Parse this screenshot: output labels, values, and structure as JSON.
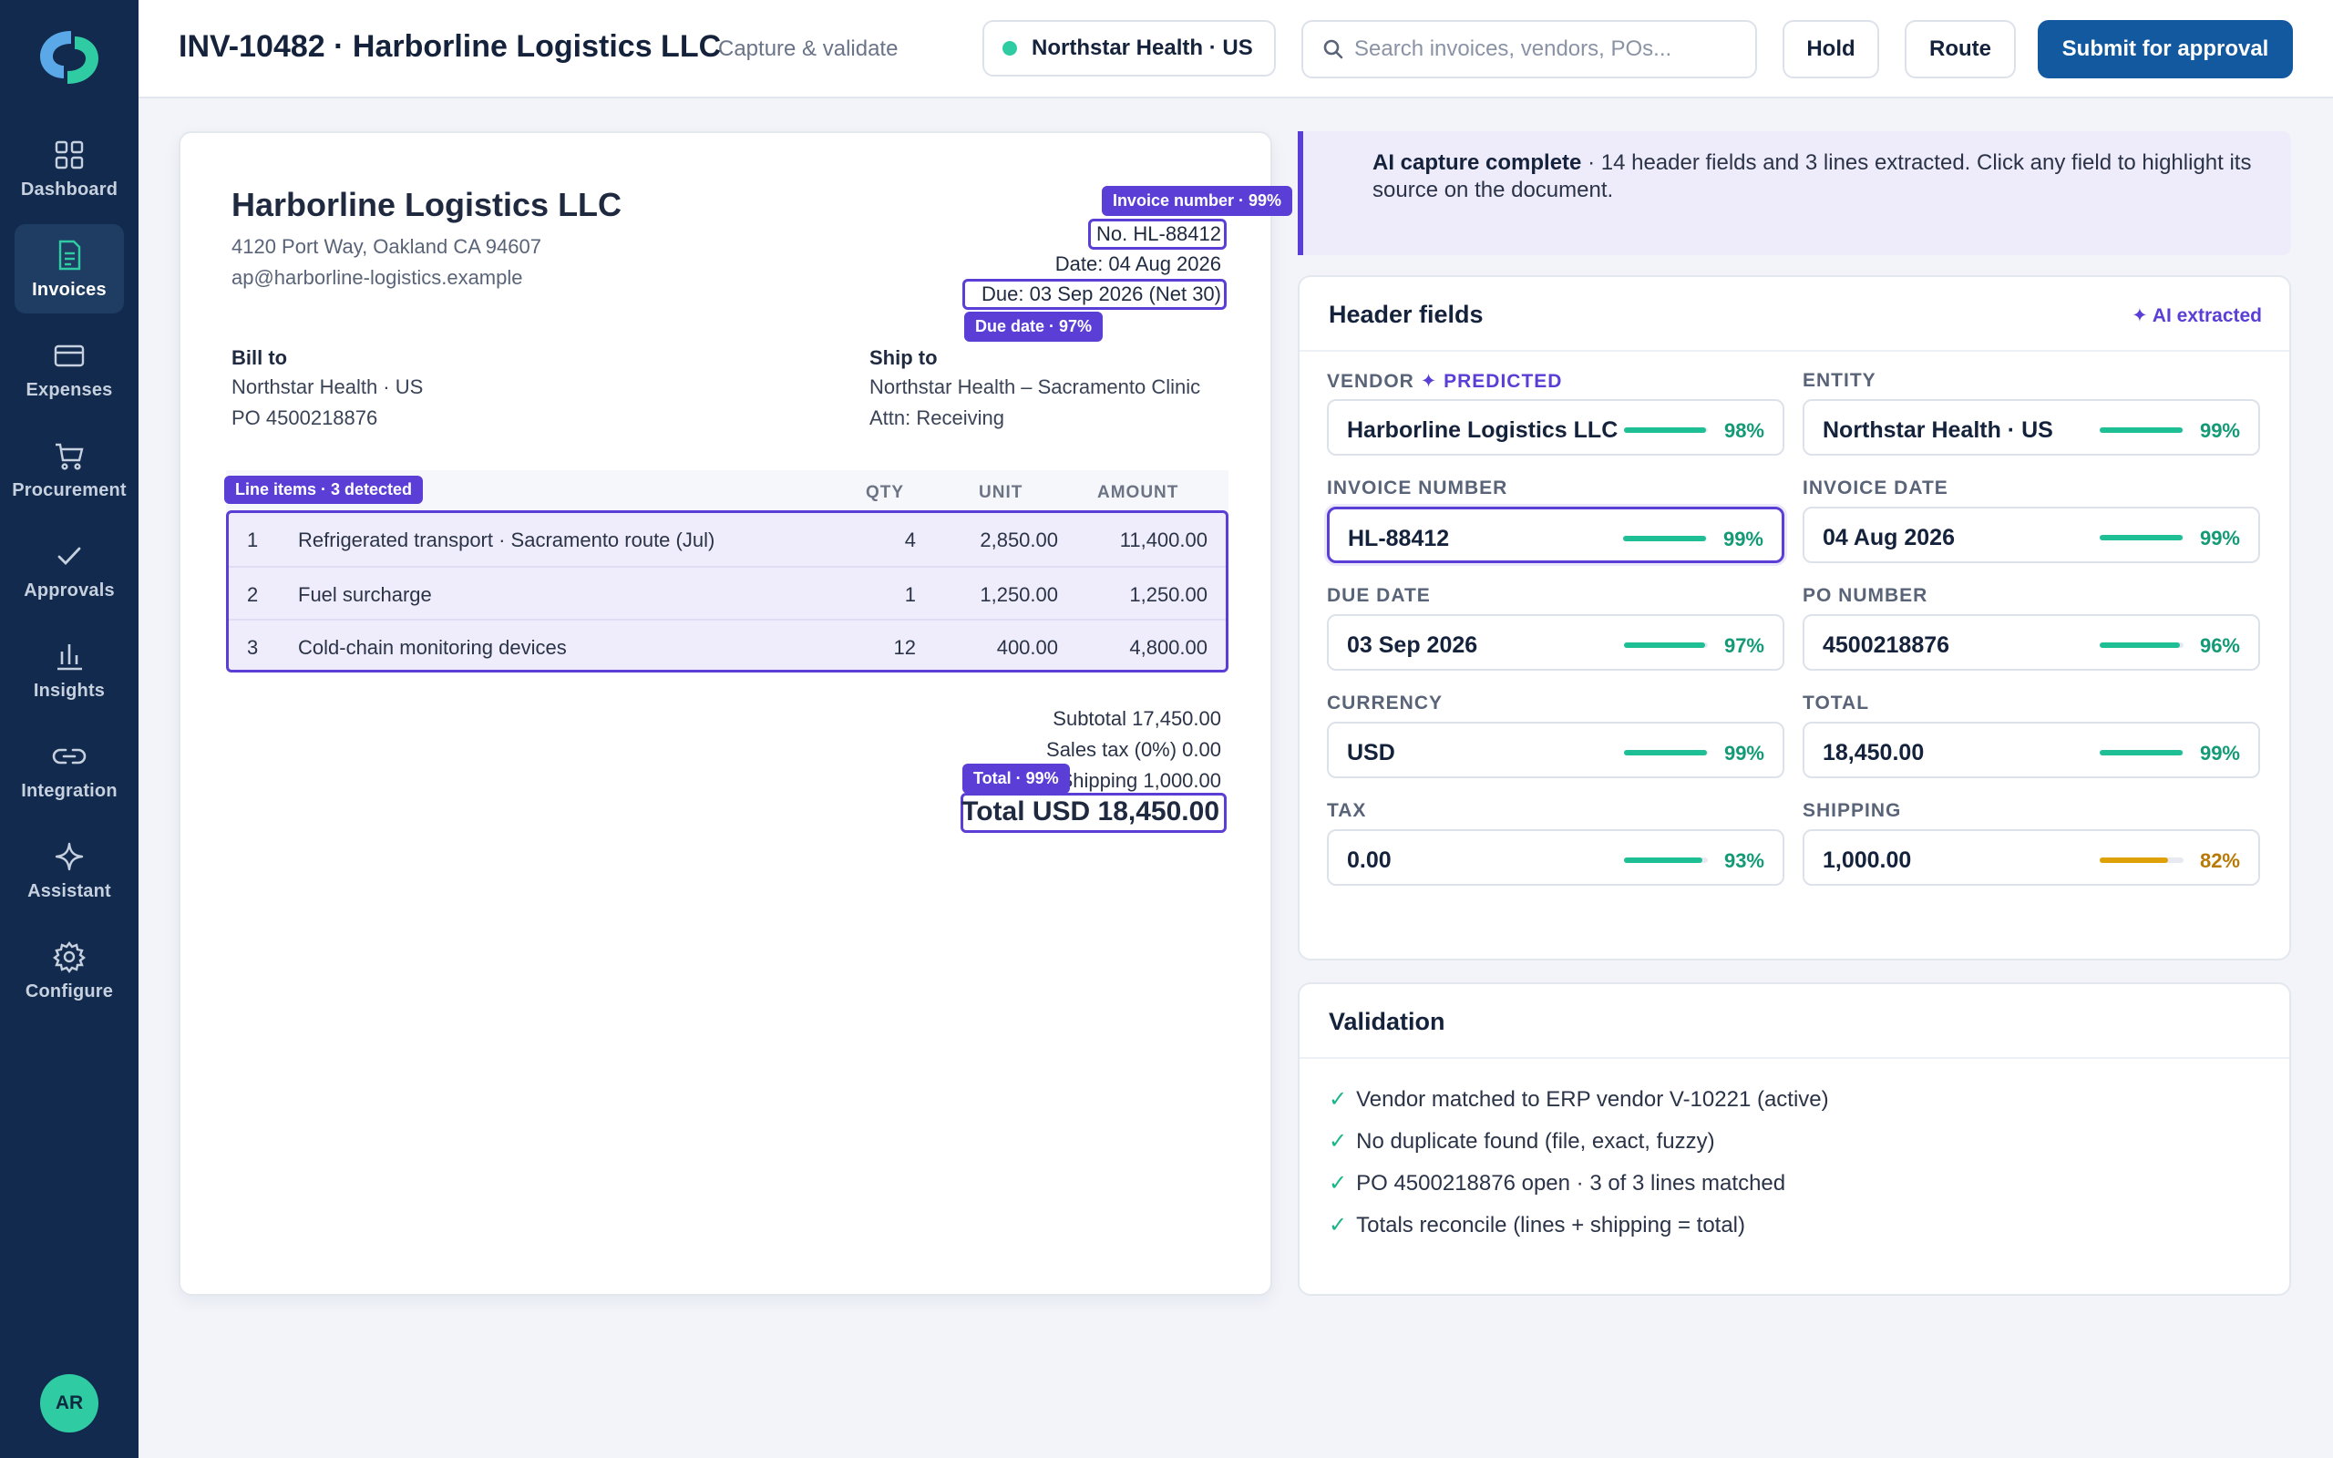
{
  "sidebar": {
    "items": [
      {
        "label": "Dashboard"
      },
      {
        "label": "Invoices"
      },
      {
        "label": "Expenses"
      },
      {
        "label": "Procurement"
      },
      {
        "label": "Approvals"
      },
      {
        "label": "Insights"
      },
      {
        "label": "Integration"
      },
      {
        "label": "Assistant"
      },
      {
        "label": "Configure"
      }
    ],
    "avatar_initials": "AR"
  },
  "header": {
    "title": "INV-10482 · Harborline Logistics LLC",
    "subtitle": "Capture & validate",
    "entity": "Northstar Health · US",
    "search_placeholder": "Search invoices, vendors, POs...",
    "hold_label": "Hold",
    "route_label": "Route",
    "submit_label": "Submit for approval"
  },
  "document": {
    "vendor_name": "Harborline Logistics LLC",
    "vendor_address": "4120 Port Way, Oakland CA 94607",
    "vendor_email": "ap@harborline-logistics.example",
    "invoice_no": "No. HL-88412",
    "invoice_date": "Date: 04 Aug 2026",
    "due": "Due: 03 Sep 2026 (Net 30)",
    "tags": {
      "invoice_number": "Invoice number · 99%",
      "due_date": "Due date · 97%",
      "line_items": "Line items · 3 detected",
      "total": "Total · 99%"
    },
    "bill_to": {
      "label": "Bill to",
      "line1": "Northstar Health · US",
      "line2": "PO 4500218876"
    },
    "ship_to": {
      "label": "Ship to",
      "line1": "Northstar Health – Sacramento Clinic",
      "line2": "Attn: Receiving"
    },
    "line_headers": {
      "qty": "QTY",
      "unit": "UNIT",
      "amount": "AMOUNT"
    },
    "lines": [
      {
        "n": "1",
        "desc": "Refrigerated transport · Sacramento route (Jul)",
        "qty": "4",
        "unit": "2,850.00",
        "amount": "11,400.00"
      },
      {
        "n": "2",
        "desc": "Fuel surcharge",
        "qty": "1",
        "unit": "1,250.00",
        "amount": "1,250.00"
      },
      {
        "n": "3",
        "desc": "Cold-chain monitoring devices",
        "qty": "12",
        "unit": "400.00",
        "amount": "4,800.00"
      }
    ],
    "subtotal": "Subtotal 17,450.00",
    "tax": "Sales tax (0%) 0.00",
    "shipping": "Shipping 1,000.00",
    "total": "Total USD 18,450.00"
  },
  "ai_banner": {
    "title": "AI capture complete",
    "text": " · 14 header fields and 3 lines extracted. Click any field to highlight its source on the document."
  },
  "header_fields": {
    "title": "Header fields",
    "aside": "✦ AI extracted",
    "fields": [
      {
        "label": "VENDOR",
        "predicted": " ✦ PREDICTED",
        "value": "Harborline Logistics LLC",
        "confidence": "98%",
        "conf_value": 0.98,
        "color": "#1fbf95"
      },
      {
        "label": "ENTITY",
        "predicted": "",
        "value": "Northstar Health · US",
        "confidence": "99%",
        "conf_value": 0.99,
        "color": "#1fbf95"
      },
      {
        "label": "INVOICE NUMBER",
        "predicted": "",
        "value": "HL-88412",
        "confidence": "99%",
        "conf_value": 0.99,
        "color": "#1fbf95"
      },
      {
        "label": "INVOICE DATE",
        "predicted": "",
        "value": "04 Aug 2026",
        "confidence": "99%",
        "conf_value": 0.99,
        "color": "#1fbf95"
      },
      {
        "label": "DUE DATE",
        "predicted": "",
        "value": "03 Sep 2026",
        "confidence": "97%",
        "conf_value": 0.97,
        "color": "#1fbf95"
      },
      {
        "label": "PO NUMBER",
        "predicted": "",
        "value": "4500218876",
        "confidence": "96%",
        "conf_value": 0.96,
        "color": "#1fbf95"
      },
      {
        "label": "CURRENCY",
        "predicted": "",
        "value": "USD",
        "confidence": "99%",
        "conf_value": 0.99,
        "color": "#1fbf95"
      },
      {
        "label": "TOTAL",
        "predicted": "",
        "value": "18,450.00",
        "confidence": "99%",
        "conf_value": 0.99,
        "color": "#1fbf95"
      },
      {
        "label": "TAX",
        "predicted": "",
        "value": "0.00",
        "confidence": "93%",
        "conf_value": 0.93,
        "color": "#1fbf95"
      },
      {
        "label": "SHIPPING",
        "predicted": "",
        "value": "1,000.00",
        "confidence": "82%",
        "conf_value": 0.82,
        "color": "#e0a106"
      }
    ]
  },
  "validation": {
    "title": "Validation",
    "items": [
      "Vendor matched to ERP vendor V-10221 (active)",
      "No duplicate found (file, exact, fuzzy)",
      "PO 4500218876 open · 3 of 3 lines matched",
      "Totals reconcile (lines + shipping = total)"
    ]
  },
  "colors": {
    "accent": "#5b3ed6",
    "primary": "#13599f",
    "sidebar": "#112a4d",
    "success": "#1fbf95",
    "warning": "#e0a106"
  }
}
